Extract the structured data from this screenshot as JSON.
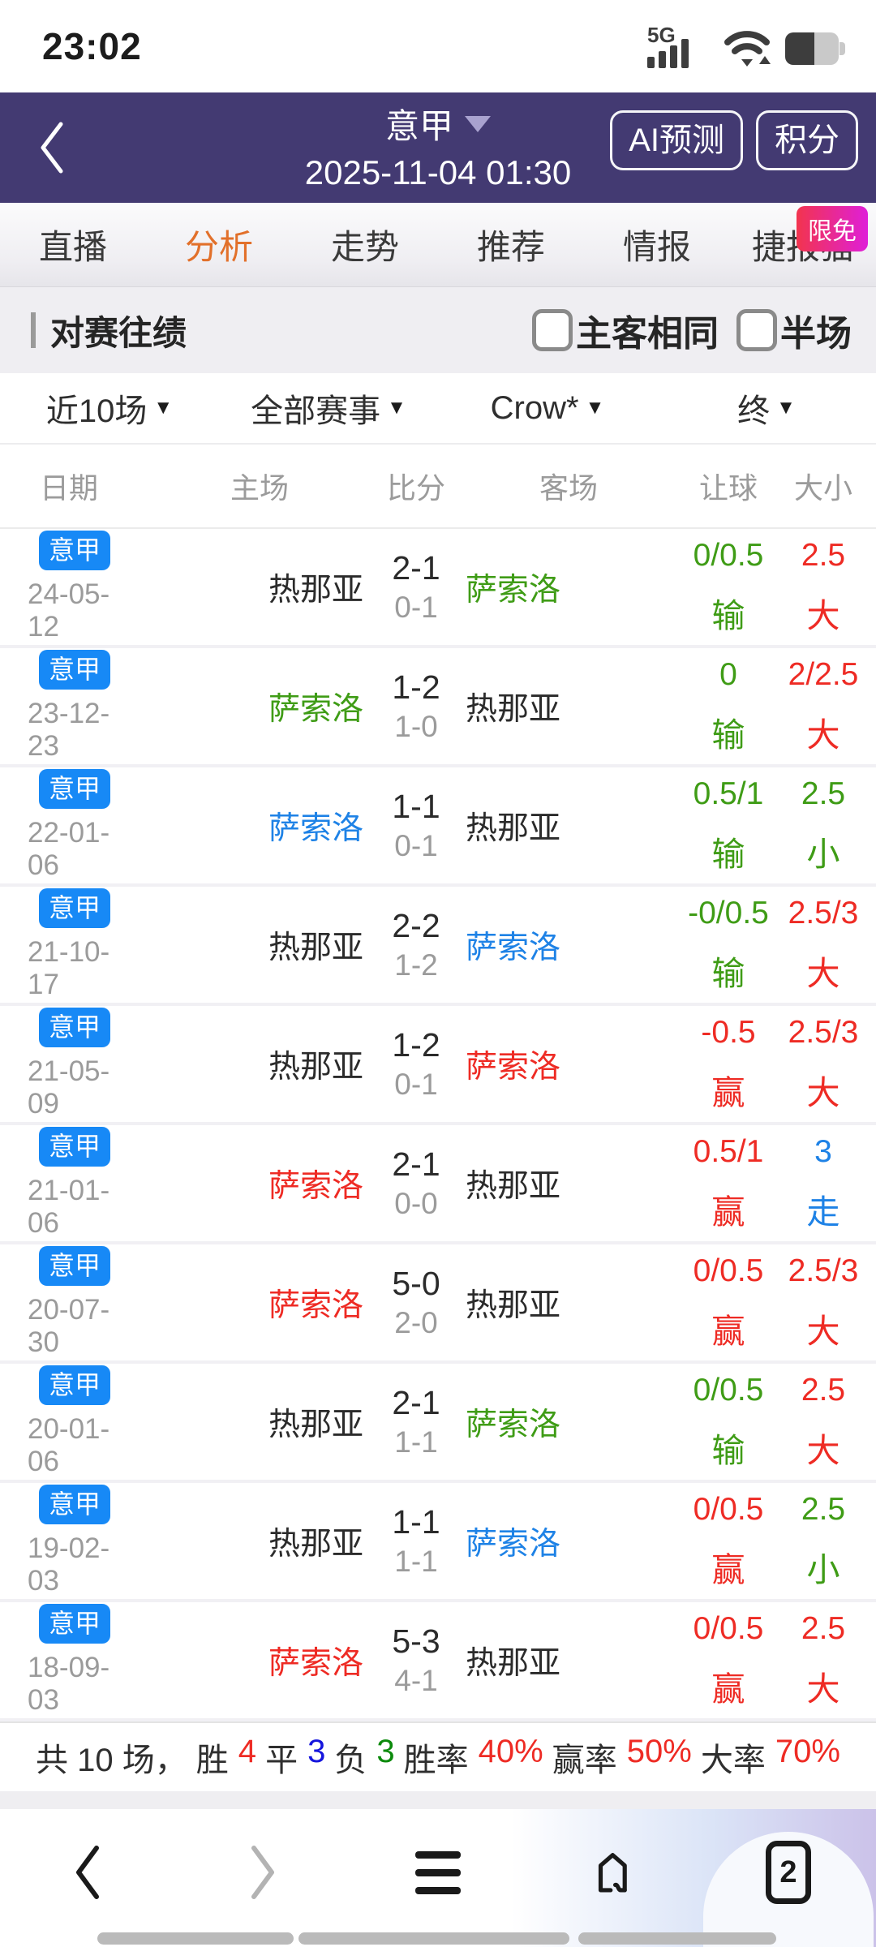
{
  "status_bar": {
    "time": "23:02",
    "network": "5G"
  },
  "header": {
    "league": "意甲",
    "kickoff": "2025-11-04 01:30",
    "ai_button": "AI预测",
    "standings_button": "积分"
  },
  "tabs": {
    "items": [
      "直播",
      "分析",
      "走势",
      "推荐",
      "情报",
      "捷报猫"
    ],
    "active_index": 1,
    "promo_badge": "限免"
  },
  "section": {
    "title": "对赛往绩",
    "checkboxes": [
      {
        "label": "主客相同",
        "checked": false
      },
      {
        "label": "半场",
        "checked": false
      }
    ]
  },
  "filters": [
    "近10场",
    "全部赛事",
    "Crow*",
    "终"
  ],
  "table": {
    "headers": [
      "日期",
      "主场",
      "比分",
      "客场",
      "让球",
      "大小"
    ],
    "rows": [
      {
        "league": "意甲",
        "date": "24-05-12",
        "home": {
          "name": "热那亚",
          "color": "dark"
        },
        "score": {
          "full": "2-1",
          "half": "0-1"
        },
        "away": {
          "name": "萨索洛",
          "color": "green"
        },
        "handicap": {
          "value": "0/0.5",
          "result": "输",
          "color": "green"
        },
        "ou": {
          "value": "2.5",
          "result": "大",
          "color": "red"
        }
      },
      {
        "league": "意甲",
        "date": "23-12-23",
        "home": {
          "name": "萨索洛",
          "color": "green"
        },
        "score": {
          "full": "1-2",
          "half": "1-0"
        },
        "away": {
          "name": "热那亚",
          "color": "dark"
        },
        "handicap": {
          "value": "0",
          "result": "输",
          "color": "green"
        },
        "ou": {
          "value": "2/2.5",
          "result": "大",
          "color": "red"
        }
      },
      {
        "league": "意甲",
        "date": "22-01-06",
        "home": {
          "name": "萨索洛",
          "color": "blue"
        },
        "score": {
          "full": "1-1",
          "half": "0-1"
        },
        "away": {
          "name": "热那亚",
          "color": "dark"
        },
        "handicap": {
          "value": "0.5/1",
          "result": "输",
          "color": "green"
        },
        "ou": {
          "value": "2.5",
          "result": "小",
          "color": "green"
        }
      },
      {
        "league": "意甲",
        "date": "21-10-17",
        "home": {
          "name": "热那亚",
          "color": "dark"
        },
        "score": {
          "full": "2-2",
          "half": "1-2"
        },
        "away": {
          "name": "萨索洛",
          "color": "blue"
        },
        "handicap": {
          "value": "-0/0.5",
          "result": "输",
          "color": "green"
        },
        "ou": {
          "value": "2.5/3",
          "result": "大",
          "color": "red"
        }
      },
      {
        "league": "意甲",
        "date": "21-05-09",
        "home": {
          "name": "热那亚",
          "color": "dark"
        },
        "score": {
          "full": "1-2",
          "half": "0-1"
        },
        "away": {
          "name": "萨索洛",
          "color": "red"
        },
        "handicap": {
          "value": "-0.5",
          "result": "赢",
          "color": "red"
        },
        "ou": {
          "value": "2.5/3",
          "result": "大",
          "color": "red"
        }
      },
      {
        "league": "意甲",
        "date": "21-01-06",
        "home": {
          "name": "萨索洛",
          "color": "red"
        },
        "score": {
          "full": "2-1",
          "half": "0-0"
        },
        "away": {
          "name": "热那亚",
          "color": "dark"
        },
        "handicap": {
          "value": "0.5/1",
          "result": "赢",
          "color": "red"
        },
        "ou": {
          "value": "3",
          "result": "走",
          "color": "blue"
        }
      },
      {
        "league": "意甲",
        "date": "20-07-30",
        "home": {
          "name": "萨索洛",
          "color": "red"
        },
        "score": {
          "full": "5-0",
          "half": "2-0"
        },
        "away": {
          "name": "热那亚",
          "color": "dark"
        },
        "handicap": {
          "value": "0/0.5",
          "result": "赢",
          "color": "red"
        },
        "ou": {
          "value": "2.5/3",
          "result": "大",
          "color": "red"
        }
      },
      {
        "league": "意甲",
        "date": "20-01-06",
        "home": {
          "name": "热那亚",
          "color": "dark"
        },
        "score": {
          "full": "2-1",
          "half": "1-1"
        },
        "away": {
          "name": "萨索洛",
          "color": "green"
        },
        "handicap": {
          "value": "0/0.5",
          "result": "输",
          "color": "green"
        },
        "ou": {
          "value": "2.5",
          "result": "大",
          "color": "red"
        }
      },
      {
        "league": "意甲",
        "date": "19-02-03",
        "home": {
          "name": "热那亚",
          "color": "dark"
        },
        "score": {
          "full": "1-1",
          "half": "1-1"
        },
        "away": {
          "name": "萨索洛",
          "color": "blue"
        },
        "handicap": {
          "value": "0/0.5",
          "result": "赢",
          "color": "red"
        },
        "ou": {
          "value": "2.5",
          "result": "小",
          "color": "green"
        }
      },
      {
        "league": "意甲",
        "date": "18-09-03",
        "home": {
          "name": "萨索洛",
          "color": "red"
        },
        "score": {
          "full": "5-3",
          "half": "4-1"
        },
        "away": {
          "name": "热那亚",
          "color": "dark"
        },
        "handicap": {
          "value": "0/0.5",
          "result": "赢",
          "color": "red"
        },
        "ou": {
          "value": "2.5",
          "result": "大",
          "color": "red"
        }
      }
    ]
  },
  "summary": {
    "lead": "共 10 场，",
    "stats": [
      {
        "label": "胜",
        "value": "4",
        "color": "red"
      },
      {
        "label": "平",
        "value": "3",
        "color": "blue2"
      },
      {
        "label": "负",
        "value": "3",
        "color": "green2"
      },
      {
        "label": "胜率",
        "value": "40%",
        "color": "red"
      },
      {
        "label": "赢率",
        "value": "50%",
        "color": "red"
      },
      {
        "label": "大率",
        "value": "70%",
        "color": "red"
      }
    ]
  },
  "nav_bar": {
    "tab_count": "2"
  },
  "colors": {
    "header_purple": "#433a72",
    "badge_blue": "#1789f6",
    "tab_active_orange": "#e2702a",
    "result_colors": {
      "dark": "#2b2b2b",
      "red": "#ee2b24",
      "green": "#3f9c16",
      "blue": "#1e82e6",
      "blue2": "#1515dd",
      "green2": "#0c8a0c"
    },
    "promo_gradient": [
      "#f2344e",
      "#df1fd8"
    ]
  }
}
